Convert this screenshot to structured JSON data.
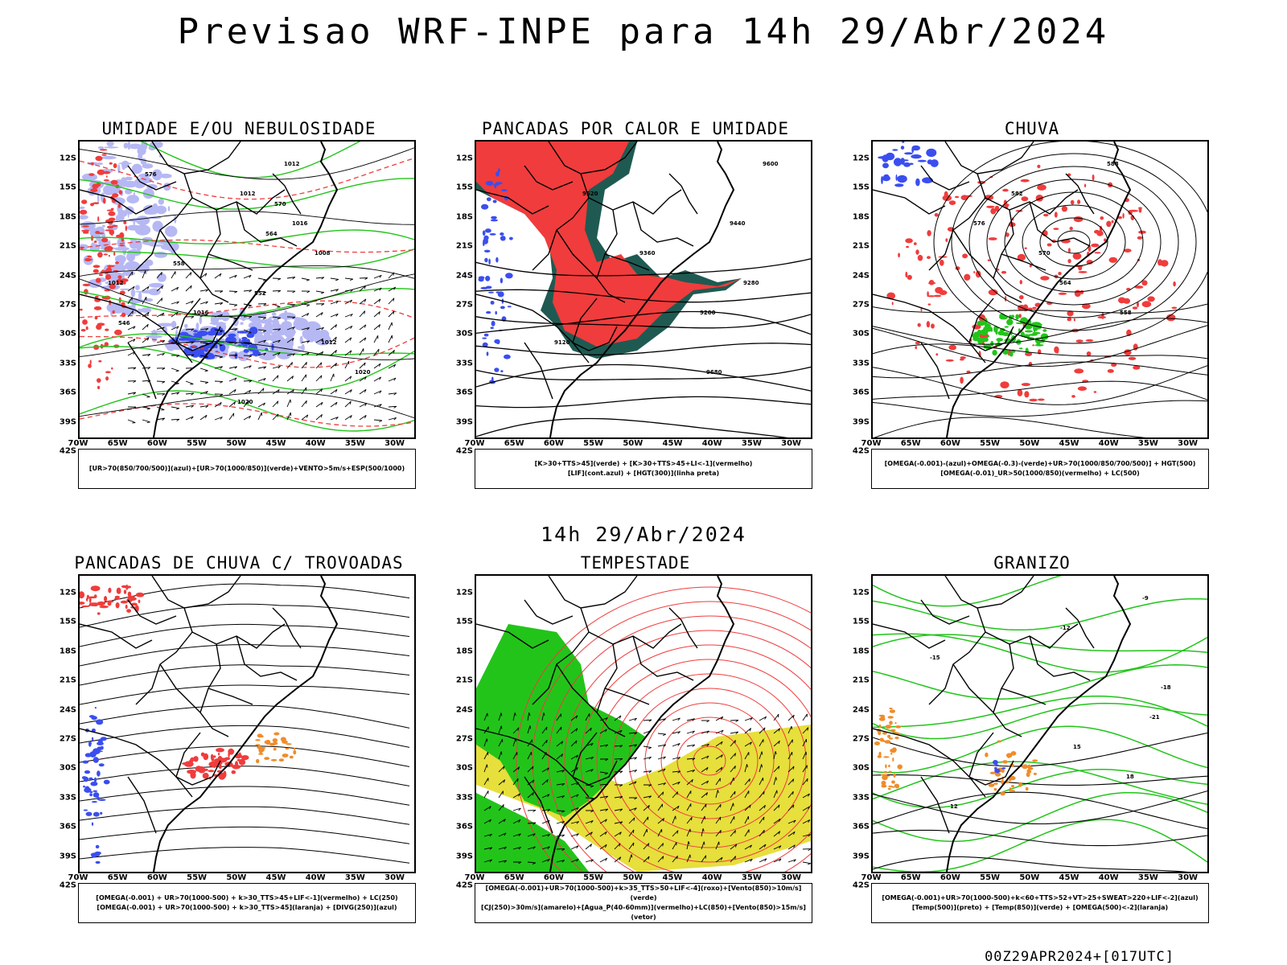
{
  "main_title": "Previsao WRF-INPE  para 14h 29/Abr/2024",
  "middle_title": "14h 29/Abr/2024",
  "footer_stamp": "00Z29APR2024+[017UTC]",
  "lat_ticks": [
    "12S",
    "15S",
    "18S",
    "21S",
    "24S",
    "27S",
    "30S",
    "33S",
    "36S",
    "39S",
    "42S"
  ],
  "lon_ticks": [
    "70W",
    "65W",
    "60W",
    "55W",
    "50W",
    "45W",
    "40W",
    "35W",
    "30W"
  ],
  "colors": {
    "red": "#f03c3c",
    "blue": "#3a4ef0",
    "green": "#22c41a",
    "lightblue": "#b6b8f4",
    "darkgreen": "#1f5a52",
    "orange": "#f08c2a",
    "yellow": "#e6df3c",
    "black": "#000000"
  },
  "panels": [
    {
      "key": "umidade",
      "title": "UMIDADE E/OU NEBULOSIDADE",
      "legend": [
        "[UR>70(850/700/500)](azul)+[UR>70(1000/850)](verde)+VENTO>5m/s+ESP(500/1000)"
      ],
      "contour_labels": [
        "1012",
        "1012",
        "1016",
        "1008",
        "1012",
        "1016",
        "1012",
        "1020",
        "1020",
        "576",
        "570",
        "564",
        "558",
        "552",
        "546"
      ]
    },
    {
      "key": "pancadas-calor",
      "title": "PANCADAS POR CALOR E UMIDADE",
      "legend": [
        "[K>30+TTS>45](verde) + [K>30+TTS>45+LI<-1](vermelho)",
        "[LIF](cont.azul) + [HGT(300)](linha preta)"
      ],
      "contour_labels": [
        "9600",
        "9520",
        "9440",
        "9360",
        "9280",
        "9200",
        "9120",
        "9680"
      ]
    },
    {
      "key": "chuva",
      "title": "CHUVA",
      "legend": [
        "[OMEGA(-0.001)-(azul)+OMEGA(-0.3)-(verde)+UR>70(1000/850/700/500)] + HGT(500)",
        "[OMEGA(-0.01)_UR>50(1000/850)(vermelho) + LC(500)"
      ],
      "contour_labels": [
        "588",
        "582",
        "576",
        "570",
        "564",
        "558"
      ]
    },
    {
      "key": "trovoadas",
      "title": "PANCADAS DE CHUVA C/ TROVOADAS",
      "legend": [
        "[OMEGA(-0.001) + UR>70(1000-500) + k>30_TTS>45+LIF<-1](vermelho) + LC(250)",
        "[OMEGA(-0.001) + UR>70(1000-500) + k>30_TTS>45](laranja) + [DIVG(250)](azul)"
      ],
      "contour_labels": []
    },
    {
      "key": "tempestade",
      "title": "TEMPESTADE",
      "legend": [
        "[OMEGA(-0.001)+UR>70(1000-500)+k>35_TTS>50+LIF<-4](roxo)+[Vento(850)>10m/s](verde)",
        "[CJ(250)>30m/s](amarelo)+[Agua_P(40-60mm)](vermelho)+LC(850)+[Vento(850)>15m/s](vetor)"
      ],
      "contour_labels": []
    },
    {
      "key": "granizo",
      "title": "GRANIZO",
      "legend": [
        "[OMEGA(-0.001)+UR>70(1000-500)+k<60+TTS>52+VT>25+SWEAT>220+LIF<-2](azul)",
        "[Temp(500)](preto) + [Temp(850)](verde) + [OMEGA(500)<-2](laranja)"
      ],
      "contour_labels": [
        "-9",
        "-12",
        "-15",
        "-18",
        "-21",
        "15",
        "18",
        "12"
      ]
    }
  ]
}
